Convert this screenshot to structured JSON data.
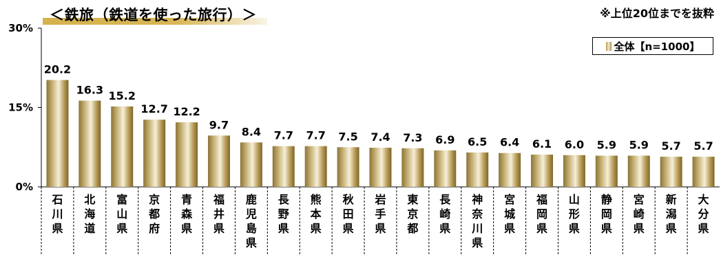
{
  "header": {
    "title": "＜鉄旅（鉄道を使った旅行）＞",
    "note": "※上位20位までを抜粋"
  },
  "legend": {
    "label": "全体【n=1000】"
  },
  "colors": {
    "bar_dark": "#8c7434",
    "bar_light": "#f6efd8",
    "title_underline": "#d4b24e",
    "axis": "#000000"
  },
  "chart_data": {
    "type": "bar",
    "title": "＜鉄旅（鉄道を使った旅行）＞",
    "xlabel": "",
    "ylabel": "",
    "ylim": [
      0,
      30
    ],
    "yticks": [
      0,
      15,
      30
    ],
    "ytick_labels": [
      "0%",
      "15%",
      "30%"
    ],
    "grid": false,
    "legend_position": "top-right",
    "categories": [
      "石川県",
      "北海道",
      "富山県",
      "京都府",
      "青森県",
      "福井県",
      "鹿児島県",
      "長野県",
      "熊本県",
      "秋田県",
      "岩手県",
      "東京都",
      "長崎県",
      "神奈川県",
      "宮城県",
      "福岡県",
      "山形県",
      "静岡県",
      "宮崎県",
      "新潟県",
      "大分県"
    ],
    "series": [
      {
        "name": "全体【n=1000】",
        "values": [
          20.2,
          16.3,
          15.2,
          12.7,
          12.2,
          9.7,
          8.4,
          7.7,
          7.7,
          7.5,
          7.4,
          7.3,
          6.9,
          6.5,
          6.4,
          6.1,
          6.0,
          5.9,
          5.9,
          5.7,
          5.7
        ]
      }
    ]
  }
}
